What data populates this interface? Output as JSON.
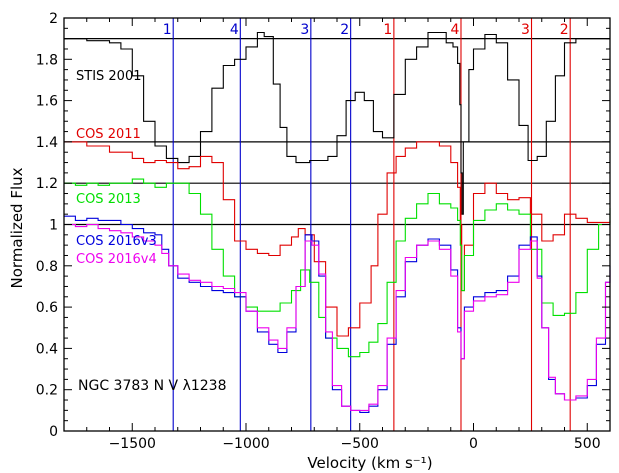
{
  "chart_data": {
    "type": "line",
    "title": "",
    "xlabel": "Velocity (km s⁻¹)",
    "ylabel": "Normalized Flux",
    "xlim": [
      -1800,
      600
    ],
    "ylim": [
      0,
      2
    ],
    "x_ticks": [
      -1500,
      -1000,
      -500,
      0,
      500
    ],
    "y_ticks": [
      0,
      0.2,
      0.4,
      0.6,
      0.8,
      1,
      1.2,
      1.4,
      1.6,
      1.8,
      2
    ],
    "x_tick_labels": [
      "−1500",
      "−1000",
      "−500",
      "0",
      "500"
    ],
    "y_tick_labels": [
      "0",
      "0.2",
      "0.4",
      "0.6",
      "0.8",
      "1",
      "1.2",
      "1.4",
      "1.6",
      "1.8",
      "2"
    ],
    "annotation": "NGC 3783 N V λ1238",
    "grid": false,
    "legend_placement": "left",
    "continuum_levels": [
      1.9,
      1.4,
      1.2,
      1.0
    ],
    "continuum_color": "#000000",
    "velocity_markers": [
      {
        "label": "1",
        "x": -1320,
        "color": "#0000cc"
      },
      {
        "label": "4",
        "x": -1025,
        "color": "#0000cc"
      },
      {
        "label": "3",
        "x": -715,
        "color": "#0000cc"
      },
      {
        "label": "2",
        "x": -540,
        "color": "#0000cc"
      },
      {
        "label": "1",
        "x": -350,
        "color": "#e00000"
      },
      {
        "label": "4",
        "x": -55,
        "color": "#e00000"
      },
      {
        "label": "3",
        "x": 255,
        "color": "#e00000"
      },
      {
        "label": "2",
        "x": 425,
        "color": "#e00000"
      }
    ],
    "series": [
      {
        "name": "STIS 2001",
        "color": "#000000",
        "points": [
          [
            -1800,
            1.9
          ],
          [
            -1700,
            1.89
          ],
          [
            -1600,
            1.88
          ],
          [
            -1550,
            1.85
          ],
          [
            -1500,
            1.72
          ],
          [
            -1450,
            1.5
          ],
          [
            -1400,
            1.38
          ],
          [
            -1350,
            1.32
          ],
          [
            -1300,
            1.3
          ],
          [
            -1250,
            1.33
          ],
          [
            -1200,
            1.45
          ],
          [
            -1150,
            1.66
          ],
          [
            -1100,
            1.77
          ],
          [
            -1050,
            1.8
          ],
          [
            -1000,
            1.86
          ],
          [
            -950,
            1.93
          ],
          [
            -920,
            1.91
          ],
          [
            -880,
            1.68
          ],
          [
            -850,
            1.47
          ],
          [
            -820,
            1.33
          ],
          [
            -780,
            1.3
          ],
          [
            -720,
            1.31
          ],
          [
            -680,
            1.31
          ],
          [
            -640,
            1.33
          ],
          [
            -600,
            1.43
          ],
          [
            -560,
            1.6
          ],
          [
            -520,
            1.64
          ],
          [
            -480,
            1.6
          ],
          [
            -440,
            1.45
          ],
          [
            -400,
            1.42
          ],
          [
            -350,
            1.63
          ],
          [
            -300,
            1.8
          ],
          [
            -250,
            1.86
          ],
          [
            -200,
            1.93
          ],
          [
            -160,
            1.93
          ],
          [
            -120,
            1.88
          ],
          [
            -90,
            1.86
          ],
          [
            -70,
            1.78
          ],
          [
            -60,
            1.58
          ],
          [
            -55,
            1.25
          ],
          [
            -50,
            1.05
          ],
          [
            -45,
            1.4
          ],
          [
            -20,
            1.75
          ],
          [
            0,
            1.85
          ],
          [
            50,
            1.92
          ],
          [
            100,
            1.88
          ],
          [
            150,
            1.7
          ],
          [
            200,
            1.48
          ],
          [
            240,
            1.31
          ],
          [
            280,
            1.33
          ],
          [
            320,
            1.5
          ],
          [
            360,
            1.72
          ],
          [
            400,
            1.88
          ],
          [
            450,
            1.9
          ],
          [
            500,
            1.9
          ],
          [
            600,
            1.9
          ]
        ]
      },
      {
        "name": "COS 2011",
        "color": "#e00000",
        "points": [
          [
            -1800,
            1.4
          ],
          [
            -1700,
            1.38
          ],
          [
            -1600,
            1.35
          ],
          [
            -1500,
            1.32
          ],
          [
            -1450,
            1.3
          ],
          [
            -1400,
            1.31
          ],
          [
            -1350,
            1.3
          ],
          [
            -1300,
            1.27
          ],
          [
            -1250,
            1.28
          ],
          [
            -1200,
            1.33
          ],
          [
            -1150,
            1.3
          ],
          [
            -1100,
            1.12
          ],
          [
            -1050,
            0.92
          ],
          [
            -1000,
            0.88
          ],
          [
            -950,
            0.86
          ],
          [
            -900,
            0.85
          ],
          [
            -850,
            0.9
          ],
          [
            -800,
            0.94
          ],
          [
            -770,
            0.98
          ],
          [
            -740,
            0.95
          ],
          [
            -700,
            0.82
          ],
          [
            -650,
            0.6
          ],
          [
            -600,
            0.46
          ],
          [
            -550,
            0.5
          ],
          [
            -500,
            0.62
          ],
          [
            -450,
            0.8
          ],
          [
            -420,
            1.05
          ],
          [
            -380,
            1.25
          ],
          [
            -340,
            1.33
          ],
          [
            -300,
            1.37
          ],
          [
            -250,
            1.4
          ],
          [
            -200,
            1.4
          ],
          [
            -150,
            1.38
          ],
          [
            -100,
            1.3
          ],
          [
            -70,
            1.18
          ],
          [
            -58,
            1.0
          ],
          [
            -52,
            0.68
          ],
          [
            -40,
            0.9
          ],
          [
            0,
            1.15
          ],
          [
            50,
            1.2
          ],
          [
            100,
            1.15
          ],
          [
            150,
            1.12
          ],
          [
            200,
            1.13
          ],
          [
            250,
            1.05
          ],
          [
            300,
            0.92
          ],
          [
            350,
            0.95
          ],
          [
            400,
            1.05
          ],
          [
            450,
            1.03
          ],
          [
            500,
            1.01
          ],
          [
            600,
            1.02
          ]
        ]
      },
      {
        "name": "COS 2013",
        "color": "#00e000",
        "points": [
          [
            -1800,
            1.2
          ],
          [
            -1750,
            1.19
          ],
          [
            -1700,
            1.2
          ],
          [
            -1650,
            1.19
          ],
          [
            -1600,
            1.2
          ],
          [
            -1550,
            1.2
          ],
          [
            -1500,
            1.22
          ],
          [
            -1450,
            1.2
          ],
          [
            -1400,
            1.18
          ],
          [
            -1350,
            1.2
          ],
          [
            -1300,
            1.2
          ],
          [
            -1250,
            1.15
          ],
          [
            -1200,
            1.05
          ],
          [
            -1150,
            0.88
          ],
          [
            -1100,
            0.75
          ],
          [
            -1050,
            0.65
          ],
          [
            -1000,
            0.6
          ],
          [
            -950,
            0.58
          ],
          [
            -900,
            0.58
          ],
          [
            -850,
            0.62
          ],
          [
            -800,
            0.68
          ],
          [
            -760,
            0.78
          ],
          [
            -720,
            0.72
          ],
          [
            -680,
            0.55
          ],
          [
            -650,
            0.45
          ],
          [
            -600,
            0.4
          ],
          [
            -550,
            0.36
          ],
          [
            -500,
            0.38
          ],
          [
            -460,
            0.43
          ],
          [
            -420,
            0.52
          ],
          [
            -380,
            0.72
          ],
          [
            -340,
            0.92
          ],
          [
            -300,
            1.03
          ],
          [
            -250,
            1.1
          ],
          [
            -200,
            1.15
          ],
          [
            -150,
            1.1
          ],
          [
            -100,
            1.08
          ],
          [
            -70,
            1.02
          ],
          [
            -58,
            0.9
          ],
          [
            -52,
            0.68
          ],
          [
            -40,
            0.85
          ],
          [
            0,
            1.02
          ],
          [
            50,
            1.07
          ],
          [
            100,
            1.1
          ],
          [
            150,
            1.07
          ],
          [
            200,
            1.05
          ],
          [
            250,
            0.88
          ],
          [
            300,
            0.62
          ],
          [
            350,
            0.56
          ],
          [
            400,
            0.57
          ],
          [
            450,
            0.67
          ],
          [
            500,
            0.88
          ],
          [
            550,
            1.0
          ],
          [
            600,
            1.08
          ]
        ]
      },
      {
        "name": "COS 2016v3",
        "color": "#0000dd",
        "points": [
          [
            -1800,
            1.04
          ],
          [
            -1750,
            1.02
          ],
          [
            -1700,
            1.03
          ],
          [
            -1650,
            1.02
          ],
          [
            -1600,
            1.02
          ],
          [
            -1550,
            1.0
          ],
          [
            -1500,
            0.98
          ],
          [
            -1450,
            0.96
          ],
          [
            -1400,
            0.95
          ],
          [
            -1370,
            0.88
          ],
          [
            -1340,
            0.8
          ],
          [
            -1300,
            0.74
          ],
          [
            -1250,
            0.72
          ],
          [
            -1200,
            0.7
          ],
          [
            -1150,
            0.68
          ],
          [
            -1100,
            0.67
          ],
          [
            -1050,
            0.65
          ],
          [
            -1000,
            0.58
          ],
          [
            -950,
            0.48
          ],
          [
            -900,
            0.42
          ],
          [
            -860,
            0.38
          ],
          [
            -820,
            0.48
          ],
          [
            -780,
            0.7
          ],
          [
            -740,
            0.95
          ],
          [
            -710,
            0.92
          ],
          [
            -680,
            0.75
          ],
          [
            -650,
            0.45
          ],
          [
            -620,
            0.2
          ],
          [
            -580,
            0.12
          ],
          [
            -540,
            0.1
          ],
          [
            -500,
            0.09
          ],
          [
            -460,
            0.12
          ],
          [
            -420,
            0.2
          ],
          [
            -380,
            0.42
          ],
          [
            -340,
            0.65
          ],
          [
            -300,
            0.82
          ],
          [
            -250,
            0.9
          ],
          [
            -200,
            0.93
          ],
          [
            -150,
            0.9
          ],
          [
            -100,
            0.78
          ],
          [
            -70,
            0.5
          ],
          [
            -55,
            0.35
          ],
          [
            -40,
            0.6
          ],
          [
            0,
            0.65
          ],
          [
            50,
            0.67
          ],
          [
            100,
            0.68
          ],
          [
            150,
            0.75
          ],
          [
            200,
            0.9
          ],
          [
            250,
            0.94
          ],
          [
            280,
            0.75
          ],
          [
            300,
            0.5
          ],
          [
            330,
            0.25
          ],
          [
            360,
            0.18
          ],
          [
            400,
            0.15
          ],
          [
            450,
            0.16
          ],
          [
            500,
            0.22
          ],
          [
            540,
            0.42
          ],
          [
            580,
            0.72
          ],
          [
            600,
            0.8
          ]
        ]
      },
      {
        "name": "COS 2016v4",
        "color": "#ee00ee",
        "points": [
          [
            -1800,
            1.0
          ],
          [
            -1750,
            0.99
          ],
          [
            -1700,
            1.0
          ],
          [
            -1650,
            0.98
          ],
          [
            -1600,
            0.97
          ],
          [
            -1550,
            0.96
          ],
          [
            -1500,
            0.94
          ],
          [
            -1450,
            0.92
          ],
          [
            -1400,
            0.9
          ],
          [
            -1370,
            0.86
          ],
          [
            -1340,
            0.8
          ],
          [
            -1300,
            0.76
          ],
          [
            -1250,
            0.73
          ],
          [
            -1200,
            0.72
          ],
          [
            -1150,
            0.7
          ],
          [
            -1100,
            0.69
          ],
          [
            -1050,
            0.67
          ],
          [
            -1000,
            0.58
          ],
          [
            -950,
            0.5
          ],
          [
            -900,
            0.44
          ],
          [
            -860,
            0.4
          ],
          [
            -820,
            0.5
          ],
          [
            -780,
            0.7
          ],
          [
            -740,
            0.92
          ],
          [
            -710,
            0.9
          ],
          [
            -680,
            0.76
          ],
          [
            -650,
            0.48
          ],
          [
            -620,
            0.22
          ],
          [
            -580,
            0.12
          ],
          [
            -540,
            0.1
          ],
          [
            -500,
            0.1
          ],
          [
            -460,
            0.13
          ],
          [
            -420,
            0.22
          ],
          [
            -380,
            0.45
          ],
          [
            -340,
            0.68
          ],
          [
            -300,
            0.84
          ],
          [
            -250,
            0.9
          ],
          [
            -200,
            0.92
          ],
          [
            -150,
            0.88
          ],
          [
            -100,
            0.75
          ],
          [
            -70,
            0.48
          ],
          [
            -55,
            0.35
          ],
          [
            -40,
            0.58
          ],
          [
            0,
            0.63
          ],
          [
            50,
            0.65
          ],
          [
            100,
            0.66
          ],
          [
            150,
            0.72
          ],
          [
            200,
            0.88
          ],
          [
            250,
            0.92
          ],
          [
            280,
            0.74
          ],
          [
            300,
            0.5
          ],
          [
            330,
            0.26
          ],
          [
            360,
            0.18
          ],
          [
            400,
            0.15
          ],
          [
            450,
            0.17
          ],
          [
            500,
            0.25
          ],
          [
            540,
            0.45
          ],
          [
            580,
            0.72
          ],
          [
            600,
            0.78
          ]
        ]
      }
    ]
  }
}
